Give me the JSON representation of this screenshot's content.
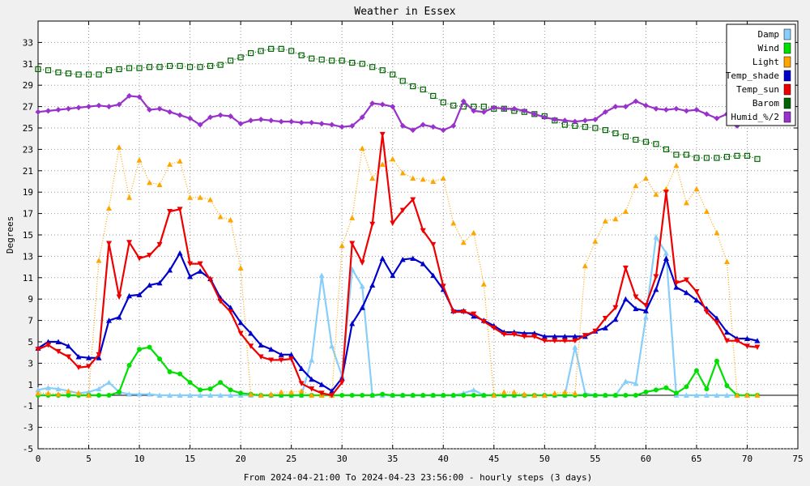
{
  "chart_data": {
    "type": "line",
    "title": "Weather in Essex",
    "xlabel": "From 2024-04-21:00 To 2024-04-23 23:56:00 - hourly steps (3 days)",
    "ylabel": "Degrees",
    "xlim": [
      0,
      75
    ],
    "ylim": [
      -5,
      35
    ],
    "xticks": [
      0,
      5,
      10,
      15,
      20,
      25,
      30,
      35,
      40,
      45,
      50,
      55,
      60,
      65,
      70,
      75
    ],
    "yticks": [
      -5,
      -3,
      -1,
      1,
      3,
      5,
      7,
      9,
      11,
      13,
      15,
      17,
      19,
      21,
      23,
      25,
      27,
      29,
      31,
      33
    ],
    "grid": true,
    "legend_position": "top-right",
    "series": [
      {
        "name": "Damp",
        "color": "#87cefa",
        "style": "solid",
        "marker": "triangle-up",
        "values": [
          0.5,
          0.7,
          0.6,
          0.4,
          0.2,
          0.3,
          0.6,
          1.2,
          0.3,
          0.1,
          0.1,
          0.1,
          0,
          0,
          0,
          0,
          0,
          0,
          0,
          0,
          0,
          0,
          0,
          0,
          0,
          0,
          0,
          3.3,
          11.2,
          4.6,
          1.8,
          11.8,
          10.2,
          0,
          0,
          0,
          0,
          0,
          0,
          0,
          0,
          0,
          0.2,
          0.5,
          0,
          0,
          0,
          0,
          0,
          0,
          0,
          0,
          0,
          4.5,
          0.2,
          0,
          0,
          0,
          1.3,
          1.1,
          7.3,
          14.8,
          13.3,
          0,
          0,
          0,
          0,
          0,
          0,
          0,
          0,
          0
        ]
      },
      {
        "name": "Wind",
        "color": "#00e000",
        "style": "solid",
        "marker": "circle",
        "values": [
          0,
          0,
          0,
          0,
          0,
          0,
          0,
          0,
          0.3,
          2.8,
          4.3,
          4.5,
          3.4,
          2.2,
          2,
          1.2,
          0.5,
          0.6,
          1.2,
          0.5,
          0.2,
          0.1,
          0,
          0,
          0,
          0,
          0,
          0,
          0,
          0,
          0,
          0,
          0,
          0,
          0.1,
          0,
          0,
          0,
          0,
          0,
          0,
          0,
          0,
          0,
          0,
          0,
          0,
          0,
          0,
          0,
          0,
          0,
          0,
          0,
          0,
          0,
          0,
          0,
          0,
          0,
          0.3,
          0.5,
          0.7,
          0.2,
          0.8,
          2.3,
          0.6,
          3.2,
          0.9,
          0,
          0,
          0
        ]
      },
      {
        "name": "Light",
        "color": "#ffa500",
        "style": "dotted",
        "marker": "triangle-up",
        "values": [
          0.2,
          0.2,
          0.1,
          0.4,
          0.2,
          0,
          12.6,
          17.5,
          23.2,
          18.5,
          22,
          19.9,
          19.7,
          21.6,
          21.9,
          18.5,
          18.5,
          18.3,
          16.7,
          16.4,
          11.9,
          0.1,
          0,
          0.1,
          0.3,
          0.3,
          0.4,
          0,
          0,
          0,
          14,
          16.6,
          23.1,
          20.3,
          21.6,
          22.1,
          20.8,
          20.3,
          20.2,
          20,
          20.3,
          16.1,
          14.3,
          15.2,
          10.4,
          0,
          0.3,
          0.3,
          0.1,
          0,
          0,
          0.2,
          0.3,
          0.2,
          12.1,
          14.4,
          16.3,
          16.5,
          17.2,
          19.6,
          20.3,
          18.8,
          19.3,
          21.5,
          18,
          19.3,
          17.2,
          15.2,
          12.5,
          0,
          0,
          0
        ]
      },
      {
        "name": "Temp_shade",
        "color": "#0000cc",
        "style": "solid",
        "marker": "triangle-up",
        "values": [
          4.4,
          5,
          5,
          4.6,
          3.6,
          3.5,
          3.5,
          7,
          7.3,
          9.3,
          9.4,
          10.3,
          10.5,
          11.7,
          13.3,
          11.1,
          11.6,
          10.9,
          9.1,
          8.2,
          6.8,
          5.8,
          4.7,
          4.3,
          3.8,
          3.8,
          2.5,
          1.5,
          1,
          0.4,
          1.6,
          6.7,
          8.2,
          10.3,
          12.8,
          11.2,
          12.7,
          12.8,
          12.3,
          11.2,
          9.9,
          7.9,
          7.9,
          7.4,
          7,
          6.5,
          5.9,
          5.9,
          5.8,
          5.8,
          5.5,
          5.5,
          5.5,
          5.5,
          5.5,
          6,
          6.3,
          7.1,
          9,
          8.1,
          7.9,
          9.9,
          12.8,
          10.1,
          9.6,
          8.9,
          8.1,
          7.2,
          5.9,
          5.3,
          5.3,
          5.1
        ]
      },
      {
        "name": "Temp_sun",
        "color": "#ee0000",
        "style": "solid",
        "marker": "triangle-down",
        "values": [
          4.3,
          4.7,
          4.1,
          3.6,
          2.6,
          2.7,
          3.8,
          14.2,
          9.2,
          14.3,
          12.8,
          13.1,
          14.1,
          17.2,
          17.4,
          12.3,
          12.3,
          10.8,
          8.8,
          7.8,
          5.8,
          4.6,
          3.6,
          3.3,
          3.3,
          3.4,
          1.1,
          0.6,
          0.2,
          0,
          1.2,
          14.2,
          12.4,
          16,
          24.4,
          16.1,
          17.3,
          18.3,
          15.4,
          14.1,
          10.2,
          7.8,
          7.8,
          7.6,
          6.9,
          6.3,
          5.7,
          5.7,
          5.5,
          5.5,
          5.1,
          5.1,
          5.1,
          5.1,
          5.6,
          6,
          7.2,
          8.2,
          11.9,
          9.2,
          8.4,
          11.1,
          19,
          10.5,
          10.8,
          9.7,
          7.8,
          6.8,
          5.1,
          5.1,
          4.6,
          4.5
        ]
      },
      {
        "name": "Barom",
        "color": "#006400",
        "style": "dotted",
        "marker": "square",
        "values": [
          30.5,
          30.4,
          30.2,
          30.1,
          30,
          30,
          30,
          30.4,
          30.5,
          30.6,
          30.6,
          30.7,
          30.7,
          30.8,
          30.8,
          30.7,
          30.7,
          30.8,
          30.9,
          31.3,
          31.6,
          32,
          32.2,
          32.4,
          32.4,
          32.2,
          31.8,
          31.5,
          31.4,
          31.3,
          31.3,
          31.1,
          31,
          30.7,
          30.4,
          30,
          29.4,
          28.9,
          28.6,
          28,
          27.4,
          27.1,
          27,
          27,
          27,
          26.8,
          26.8,
          26.6,
          26.5,
          26.3,
          26.1,
          25.7,
          25.3,
          25.2,
          25.1,
          25,
          24.8,
          24.5,
          24.2,
          23.9,
          23.7,
          23.5,
          23,
          22.5,
          22.5,
          22.2,
          22.2,
          22.2,
          22.3,
          22.4,
          22.4,
          22.1
        ]
      },
      {
        "name": "Humid_%/2",
        "color": "#9932cc",
        "style": "solid",
        "marker": "diamond",
        "values": [
          26.5,
          26.6,
          26.7,
          26.8,
          26.9,
          27,
          27.1,
          27,
          27.2,
          28,
          27.9,
          26.7,
          26.8,
          26.5,
          26.2,
          25.9,
          25.3,
          26,
          26.2,
          26.1,
          25.4,
          25.7,
          25.8,
          25.7,
          25.6,
          25.6,
          25.5,
          25.5,
          25.4,
          25.3,
          25.1,
          25.2,
          26,
          27.3,
          27.2,
          27,
          25.2,
          24.8,
          25.3,
          25.1,
          24.8,
          25.2,
          27.5,
          26.6,
          26.5,
          26.9,
          26.8,
          26.8,
          26.6,
          26.3,
          26,
          25.8,
          25.7,
          25.6,
          25.7,
          25.8,
          26.5,
          27,
          27,
          27.5,
          27.1,
          26.8,
          26.7,
          26.8,
          26.6,
          26.7,
          26.3,
          25.9,
          26.3,
          25.2
        ]
      }
    ]
  }
}
